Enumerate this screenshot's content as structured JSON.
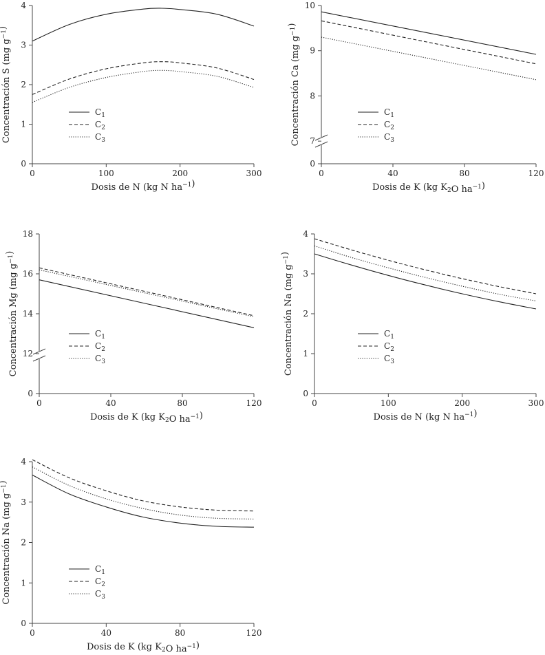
{
  "chart_data": [
    {
      "type": "line",
      "xlabel": "Dosis de N (kg N ha⁻¹)",
      "ylabel": "Concentración S (mg g⁻¹)",
      "xlim": [
        0,
        300
      ],
      "ylim": [
        0,
        4
      ],
      "xticks": [
        "0",
        "100",
        "200",
        "300"
      ],
      "yticks": [
        "0",
        "1",
        "2",
        "3",
        "4"
      ],
      "axis_break": false,
      "x": [
        0,
        50,
        100,
        150,
        175,
        200,
        250,
        300
      ],
      "series": [
        {
          "name": "C1",
          "style": "solid",
          "values": [
            3.1,
            3.52,
            3.78,
            3.91,
            3.93,
            3.9,
            3.78,
            3.48
          ]
        },
        {
          "name": "C2",
          "style": "dashed",
          "values": [
            1.75,
            2.14,
            2.4,
            2.55,
            2.58,
            2.55,
            2.42,
            2.13
          ]
        },
        {
          "name": "C3",
          "style": "dotted",
          "values": [
            1.55,
            1.93,
            2.18,
            2.33,
            2.36,
            2.33,
            2.21,
            1.93
          ]
        }
      ],
      "legend_placement": "lower-left"
    },
    {
      "type": "line",
      "xlabel": "Dosis de K (kg K₂O ha⁻¹)",
      "ylabel": "Concentración Ca (mg g⁻¹)",
      "xlim": [
        0,
        120
      ],
      "ylim": [
        6.5,
        10
      ],
      "xticks": [
        "0",
        "40",
        "80",
        "120"
      ],
      "yticks": [
        "7",
        "8",
        "9",
        "10"
      ],
      "axis_break": true,
      "x": [
        0,
        120
      ],
      "series": [
        {
          "name": "C1",
          "style": "solid",
          "values": [
            9.86,
            8.92
          ]
        },
        {
          "name": "C2",
          "style": "dashed",
          "values": [
            9.66,
            8.71
          ]
        },
        {
          "name": "C3",
          "style": "dotted",
          "values": [
            9.3,
            8.36
          ]
        }
      ],
      "legend_placement": "lower-left"
    },
    {
      "type": "line",
      "xlabel": "Dosis de K (kg K₂O ha⁻¹)",
      "ylabel": "Concentración Mg (mg g⁻¹)",
      "xlim": [
        0,
        120
      ],
      "ylim": [
        10,
        18
      ],
      "xticks": [
        "0",
        "40",
        "80",
        "120"
      ],
      "yticks": [
        "12",
        "14",
        "16",
        "18"
      ],
      "axis_break": true,
      "x": [
        0,
        120
      ],
      "series": [
        {
          "name": "C1",
          "style": "solid",
          "values": [
            15.7,
            13.3
          ]
        },
        {
          "name": "C2",
          "style": "dashed",
          "values": [
            16.3,
            13.9
          ]
        },
        {
          "name": "C3",
          "style": "dotted",
          "values": [
            16.2,
            13.85
          ]
        }
      ],
      "legend_placement": "lower-left"
    },
    {
      "type": "line",
      "xlabel": "Dosis de N (kg N ha⁻¹)",
      "ylabel": "Concentración Na (mg g⁻¹)",
      "xlim": [
        0,
        300
      ],
      "ylim": [
        0,
        4
      ],
      "xticks": [
        "0",
        "100",
        "200",
        "300"
      ],
      "yticks": [
        "0",
        "1",
        "2",
        "3",
        "4"
      ],
      "axis_break": false,
      "x": [
        0,
        50,
        100,
        150,
        200,
        250,
        300
      ],
      "series": [
        {
          "name": "C1",
          "style": "solid",
          "values": [
            3.5,
            3.22,
            2.96,
            2.72,
            2.5,
            2.3,
            2.12
          ]
        },
        {
          "name": "C2",
          "style": "dashed",
          "values": [
            3.88,
            3.6,
            3.34,
            3.1,
            2.88,
            2.68,
            2.5
          ]
        },
        {
          "name": "C3",
          "style": "dotted",
          "values": [
            3.7,
            3.41,
            3.15,
            2.91,
            2.69,
            2.49,
            2.32
          ]
        }
      ],
      "legend_placement": "lower-left"
    },
    {
      "type": "line",
      "xlabel": "Dosis de K (kg K₂O ha⁻¹)",
      "ylabel": "Concentración Na (mg g⁻¹)",
      "xlim": [
        0,
        120
      ],
      "ylim": [
        0,
        4
      ],
      "xticks": [
        "0",
        "40",
        "80",
        "120"
      ],
      "yticks": [
        "0",
        "1",
        "2",
        "3",
        "4"
      ],
      "axis_break": false,
      "x": [
        0,
        20,
        40,
        60,
        80,
        100,
        120
      ],
      "series": [
        {
          "name": "C1",
          "style": "solid",
          "values": [
            3.67,
            3.2,
            2.88,
            2.63,
            2.48,
            2.4,
            2.38
          ]
        },
        {
          "name": "C2",
          "style": "dashed",
          "values": [
            4.05,
            3.6,
            3.28,
            3.03,
            2.88,
            2.8,
            2.78
          ]
        },
        {
          "name": "C3",
          "style": "dotted",
          "values": [
            3.87,
            3.41,
            3.08,
            2.84,
            2.68,
            2.6,
            2.58
          ]
        }
      ],
      "legend_placement": "lower-left"
    }
  ]
}
